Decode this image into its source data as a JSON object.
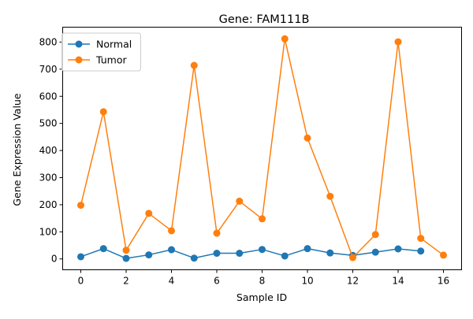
{
  "chart_data": {
    "type": "line",
    "title": "Gene: FAM111B",
    "xlabel": "Sample ID",
    "ylabel": "Gene Expression Value",
    "xlim": [
      -0.8,
      16.8
    ],
    "ylim": [
      -40,
      855
    ],
    "x_ticks": [
      "0",
      "2",
      "4",
      "6",
      "8",
      "10",
      "12",
      "14",
      "16"
    ],
    "y_ticks": [
      "0",
      "100",
      "200",
      "300",
      "400",
      "500",
      "600",
      "700",
      "800"
    ],
    "grid": false,
    "legend_position": "top-left",
    "series": [
      {
        "name": "Normal",
        "color": "#1f77b4",
        "marker": "circle",
        "x": [
          0,
          1,
          2,
          3,
          4,
          5,
          6,
          7,
          8,
          9,
          10,
          11,
          12,
          13,
          14,
          15
        ],
        "y": [
          8,
          38,
          2,
          15,
          34,
          3,
          21,
          21,
          35,
          11,
          38,
          22,
          13,
          25,
          37,
          29
        ]
      },
      {
        "name": "Tumor",
        "color": "#ff7f0e",
        "marker": "circle",
        "x": [
          0,
          1,
          2,
          3,
          4,
          5,
          6,
          7,
          8,
          9,
          10,
          11,
          12,
          13,
          14,
          15,
          16
        ],
        "y": [
          198,
          543,
          32,
          168,
          104,
          714,
          95,
          213,
          148,
          812,
          446,
          231,
          5,
          90,
          801,
          76,
          14
        ]
      }
    ]
  }
}
